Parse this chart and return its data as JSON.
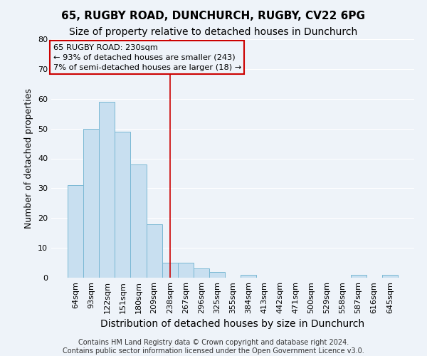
{
  "title": "65, RUGBY ROAD, DUNCHURCH, RUGBY, CV22 6PG",
  "subtitle": "Size of property relative to detached houses in Dunchurch",
  "xlabel": "Distribution of detached houses by size in Dunchurch",
  "ylabel": "Number of detached properties",
  "bar_labels": [
    "64sqm",
    "93sqm",
    "122sqm",
    "151sqm",
    "180sqm",
    "209sqm",
    "238sqm",
    "267sqm",
    "296sqm",
    "325sqm",
    "355sqm",
    "384sqm",
    "413sqm",
    "442sqm",
    "471sqm",
    "500sqm",
    "529sqm",
    "558sqm",
    "587sqm",
    "616sqm",
    "645sqm"
  ],
  "bar_heights": [
    31,
    50,
    59,
    49,
    38,
    18,
    5,
    5,
    3,
    2,
    0,
    1,
    0,
    0,
    0,
    0,
    0,
    0,
    1,
    0,
    1
  ],
  "bar_color": "#c8dff0",
  "bar_edge_color": "#7ab8d4",
  "reference_line_x": 6,
  "reference_line_color": "#cc0000",
  "ylim": [
    0,
    80
  ],
  "yticks": [
    0,
    10,
    20,
    30,
    40,
    50,
    60,
    70,
    80
  ],
  "annotation_title": "65 RUGBY ROAD: 230sqm",
  "annotation_line1": "← 93% of detached houses are smaller (243)",
  "annotation_line2": "7% of semi-detached houses are larger (18) →",
  "footer_line1": "Contains HM Land Registry data © Crown copyright and database right 2024.",
  "footer_line2": "Contains public sector information licensed under the Open Government Licence v3.0.",
  "background_color": "#eef3f9",
  "grid_color": "#ffffff",
  "title_fontsize": 11,
  "subtitle_fontsize": 10,
  "xlabel_fontsize": 10,
  "ylabel_fontsize": 9,
  "tick_fontsize": 8,
  "footer_fontsize": 7
}
